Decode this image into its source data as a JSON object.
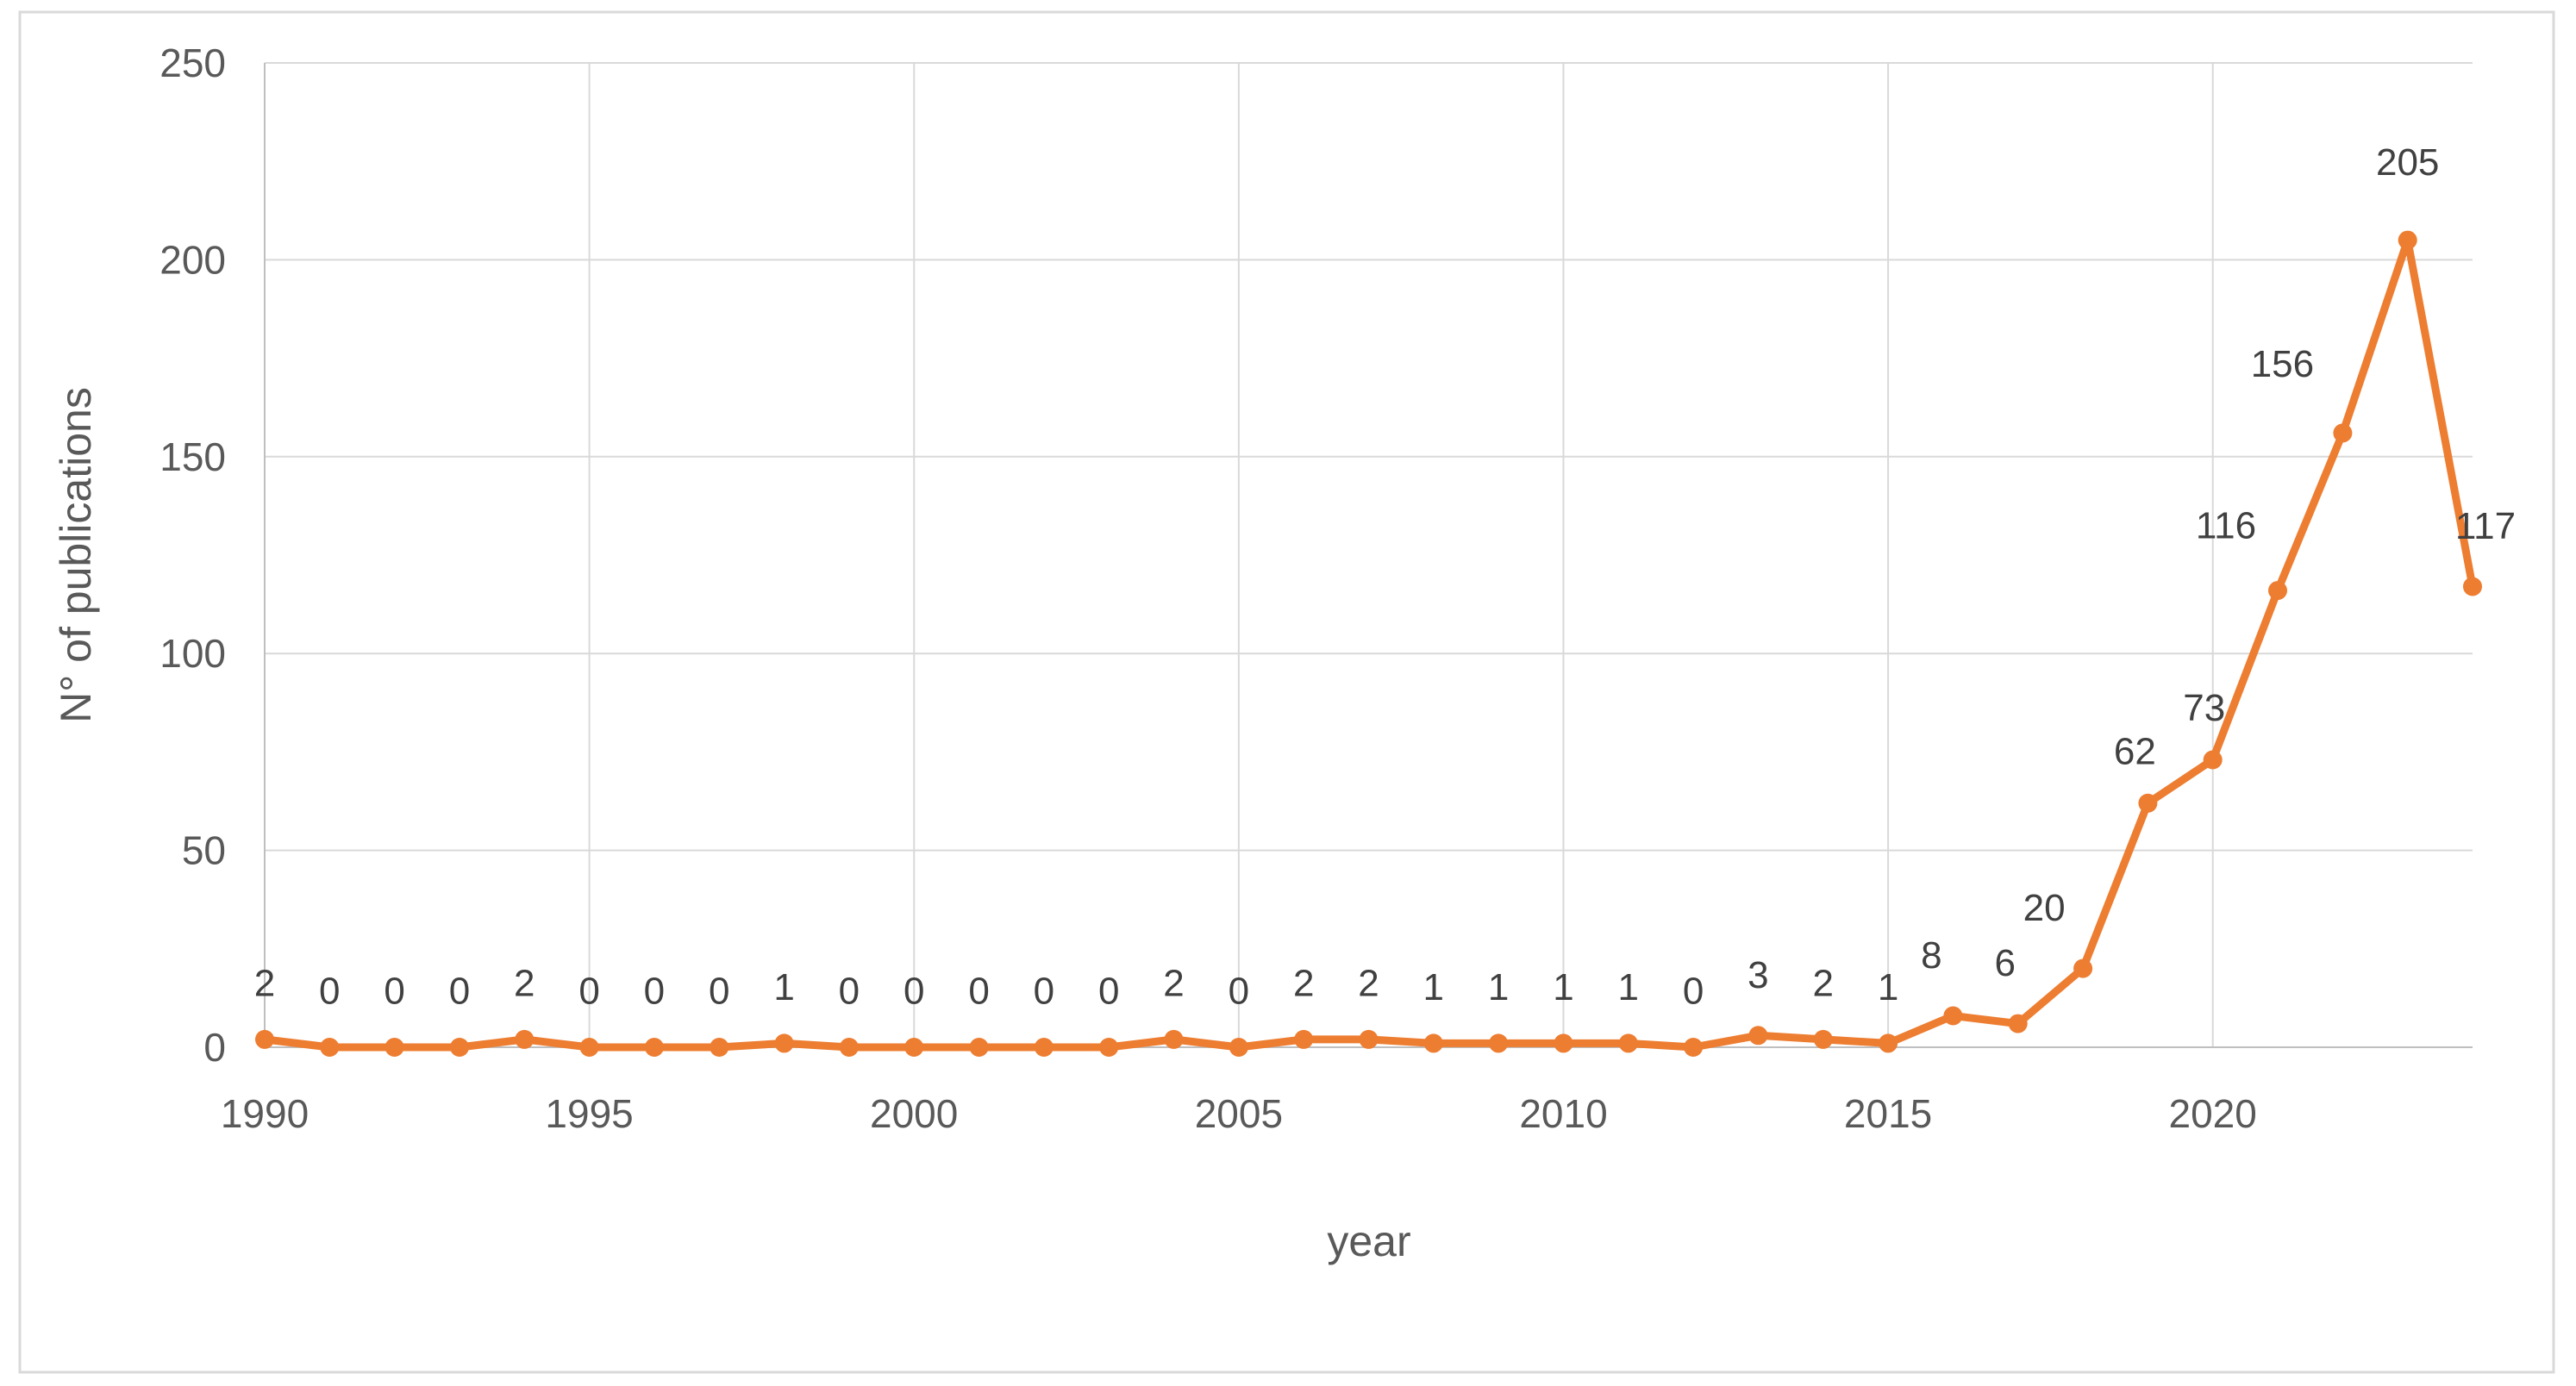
{
  "chart_data": {
    "type": "line",
    "title": "",
    "xlabel": "year",
    "ylabel": "N° of publications",
    "x": [
      1990,
      1991,
      1992,
      1993,
      1994,
      1995,
      1996,
      1997,
      1998,
      1999,
      2000,
      2001,
      2002,
      2003,
      2004,
      2005,
      2006,
      2007,
      2008,
      2009,
      2010,
      2011,
      2012,
      2013,
      2014,
      2015,
      2016,
      2017,
      2018,
      2019,
      2020,
      2021,
      2022,
      2023,
      2024
    ],
    "values": [
      2,
      0,
      0,
      0,
      2,
      0,
      0,
      0,
      1,
      0,
      0,
      0,
      0,
      0,
      2,
      0,
      2,
      2,
      1,
      1,
      1,
      1,
      0,
      3,
      2,
      1,
      8,
      6,
      20,
      62,
      73,
      116,
      156,
      205,
      117
    ],
    "xticks": [
      1990,
      1995,
      2000,
      2005,
      2010,
      2015,
      2020
    ],
    "yticks": [
      0,
      50,
      100,
      150,
      200,
      250
    ],
    "ylim": [
      0,
      250
    ],
    "grid": true,
    "legend": "none",
    "data_labels_shown": true,
    "series": [
      {
        "name": "publications",
        "color": "#ED7D31"
      }
    ],
    "label_offsets": {
      "23": [
        0,
        -5
      ],
      "26": [
        -25,
        -5
      ],
      "27": [
        -15,
        -5
      ],
      "28": [
        -45,
        -5
      ],
      "29": [
        -15,
        5
      ],
      "30": [
        -10,
        5
      ],
      "31": [
        -60,
        -10
      ],
      "32": [
        -70,
        -15
      ],
      "33": [
        0,
        -25
      ],
      "34": [
        15,
        -5
      ]
    }
  },
  "style": {
    "line_color": "#ED7D31",
    "marker_color": "#ED7D31",
    "grid_color": "#D9D9D9",
    "axis_line_color": "#BFBFBF",
    "tick_label_color": "#595959",
    "data_label_color": "#404040",
    "border_color": "#D9D9D9",
    "background_color": "#FFFFFF"
  }
}
